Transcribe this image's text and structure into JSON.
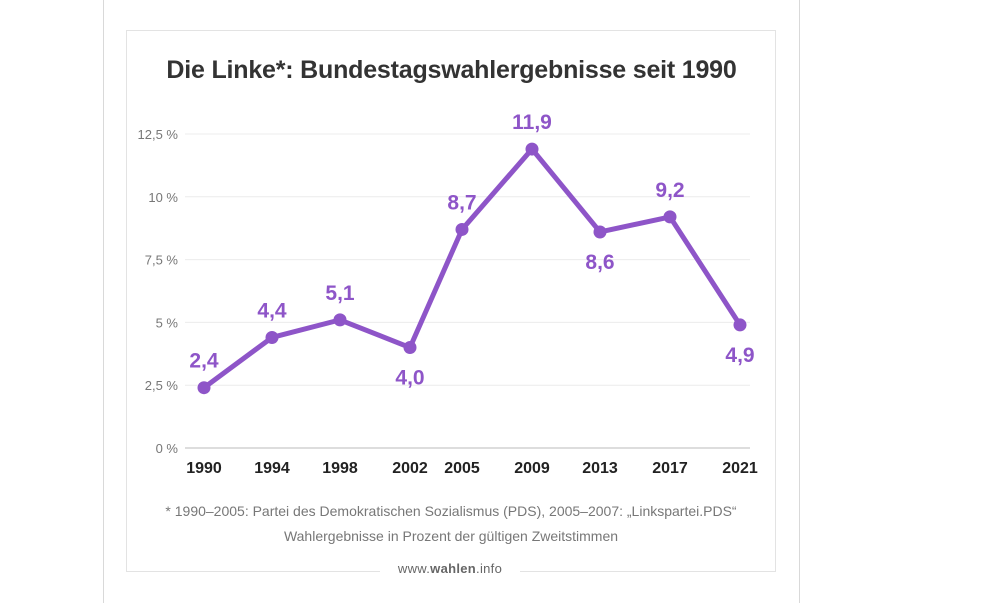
{
  "chart_data": {
    "type": "line",
    "title": "Die Linke*: Bundestagswahlergebnisse seit 1990",
    "categories": [
      "1990",
      "1994",
      "1998",
      "2002",
      "2005",
      "2009",
      "2013",
      "2017",
      "2021"
    ],
    "series": [
      {
        "name": "Die Linke",
        "values": [
          2.4,
          4.4,
          5.1,
          4.0,
          8.7,
          11.9,
          8.6,
          9.2,
          4.9
        ],
        "value_labels": [
          "2,4",
          "4,4",
          "5,1",
          "4,0",
          "8,7",
          "11,9",
          "8,6",
          "9,2",
          "4,9"
        ],
        "label_positions": [
          "above",
          "above",
          "above",
          "below",
          "above",
          "above",
          "below",
          "above",
          "below"
        ],
        "color": "#8e55c8"
      }
    ],
    "ylim": [
      0,
      12.5
    ],
    "yticks": [
      0,
      2.5,
      5,
      7.5,
      10,
      12.5
    ],
    "ytick_labels": [
      "0 %",
      "2,5 %",
      "5 %",
      "7,5 %",
      "10 %",
      "12,5 %"
    ],
    "xlabel": "",
    "ylabel": "",
    "grid": true
  },
  "footnote_1": "* 1990–2005: Partei des Demokratischen Sozialismus (PDS), 2005–2007: „Linkspartei.PDS“",
  "footnote_2": "Wahlergebnisse in Prozent der gültigen Zweitstimmen",
  "source_prefix": "www.",
  "source_brand": "wahlen",
  "source_suffix": ".info",
  "colors": {
    "line": "#8e55c8",
    "title": "#333333",
    "axis_text": "#777777",
    "grid": "#ececec"
  }
}
